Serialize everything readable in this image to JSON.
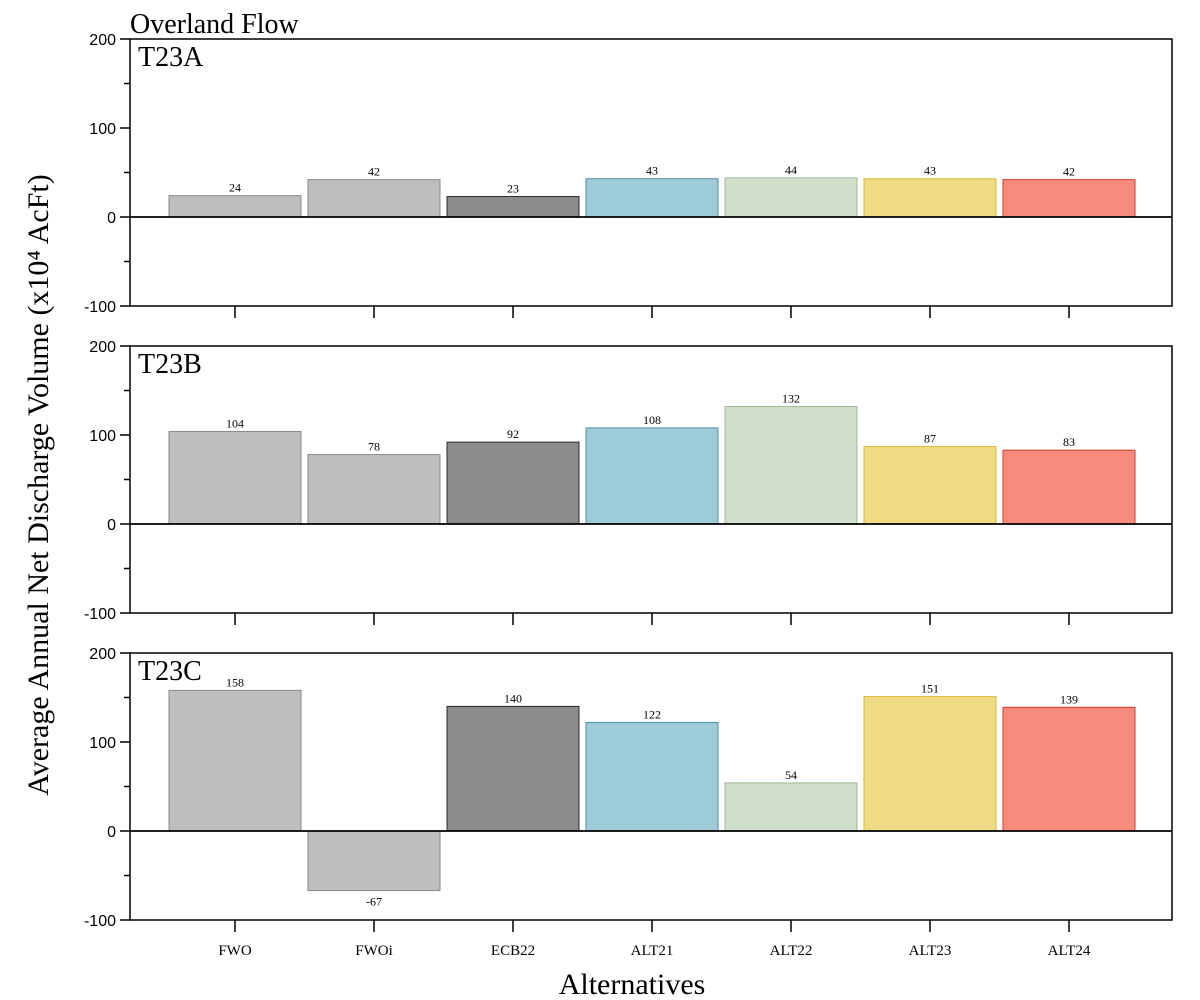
{
  "figure": {
    "title": "Overland Flow",
    "ylabel": "Average Annual Net Discharge Volume (x10⁴ AcFt)",
    "xlabel": "Alternatives"
  },
  "chart_data": {
    "type": "bar",
    "categories": [
      "FWO",
      "FWOi",
      "ECB22",
      "ALT21",
      "ALT22",
      "ALT23",
      "ALT24"
    ],
    "colors": {
      "fill": [
        "#bebebe",
        "#bebebe",
        "#8c8c8c",
        "#9ecbd8",
        "#cfdfca",
        "#f0db85",
        "#f78c7c"
      ],
      "stroke": [
        "#8a8a8a",
        "#8a8a8a",
        "#2a2a2a",
        "#4e8fa3",
        "#9fb89a",
        "#d9b73d",
        "#d63a2d"
      ]
    },
    "ylim": [
      -100,
      200
    ],
    "yticks": [
      -100,
      0,
      100,
      200
    ],
    "panels": [
      {
        "name": "T23A",
        "values": [
          24,
          42,
          23,
          43,
          44,
          43,
          42
        ]
      },
      {
        "name": "T23B",
        "values": [
          104,
          78,
          92,
          108,
          132,
          87,
          83
        ]
      },
      {
        "name": "T23C",
        "values": [
          158,
          -67,
          140,
          122,
          54,
          151,
          139
        ]
      }
    ]
  }
}
